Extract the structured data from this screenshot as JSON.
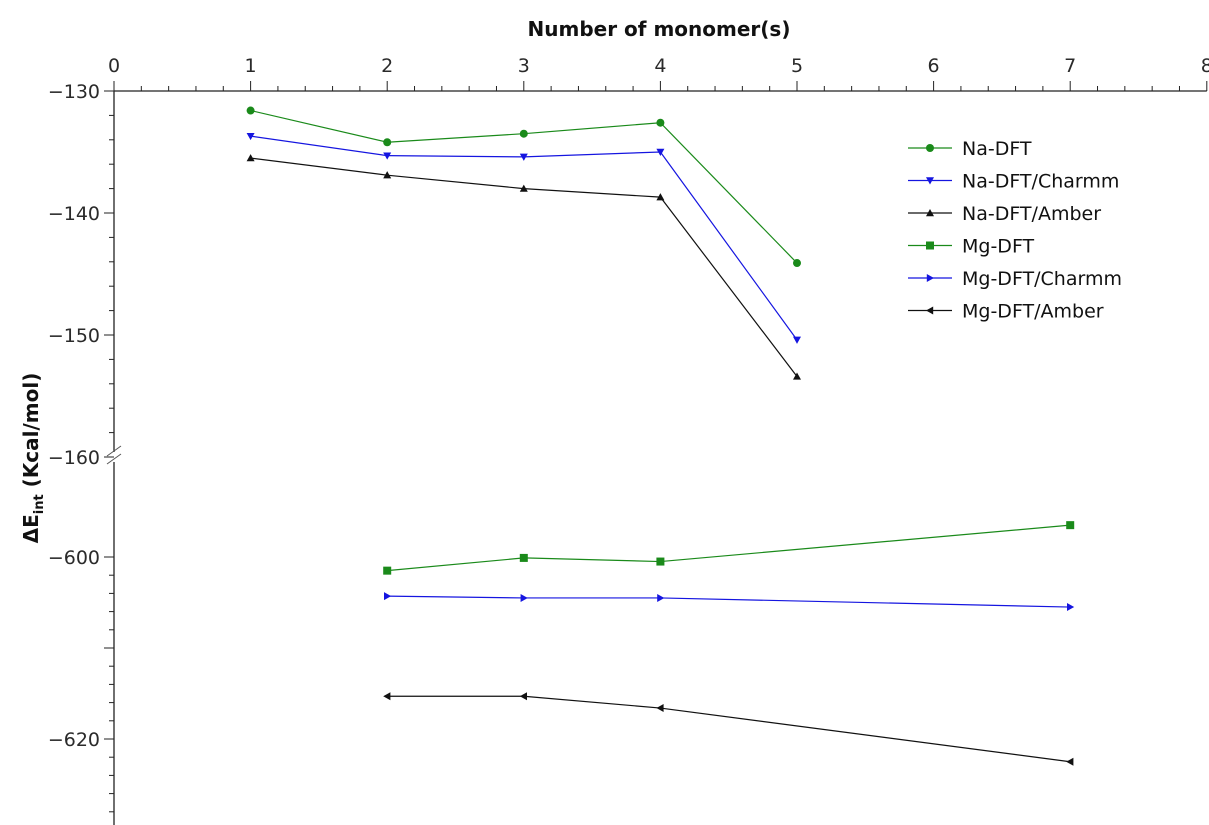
{
  "chart_data": {
    "type": "line",
    "title": "",
    "xlabel": "Number of monomer(s)",
    "ylabel_main": "ΔE",
    "ylabel_sub": "int",
    "ylabel_rest": " (Kcal/mol)",
    "xlim": [
      0,
      8
    ],
    "x_ticks": [
      "0",
      "1",
      "2",
      "3",
      "4",
      "5",
      "6",
      "7",
      "8"
    ],
    "y_axis_broken": true,
    "y_upper_ticks": [
      "−130",
      "−140",
      "−150",
      "−160"
    ],
    "y_lower_ticks": [
      "−600",
      "−620"
    ],
    "legend_position": "top-right",
    "series": [
      {
        "name": "Na-DFT",
        "color": "#1a8a1a",
        "marker": "circle",
        "x": [
          1,
          2,
          3,
          4,
          5
        ],
        "y": [
          -131.6,
          -134.2,
          -133.5,
          -132.6,
          -144.1
        ]
      },
      {
        "name": "Na-DFT/Charmm",
        "color": "#1515e0",
        "marker": "triangle-down",
        "x": [
          1,
          2,
          3,
          4,
          5
        ],
        "y": [
          -133.7,
          -135.3,
          -135.4,
          -135.0,
          -150.4
        ]
      },
      {
        "name": "Na-DFT/Amber",
        "color": "#111111",
        "marker": "triangle-up",
        "x": [
          1,
          2,
          3,
          4,
          5
        ],
        "y": [
          -135.5,
          -136.9,
          -138.0,
          -138.7,
          -153.4
        ]
      },
      {
        "name": "Mg-DFT",
        "color": "#1a8a1a",
        "marker": "square",
        "x": [
          2,
          3,
          4,
          7
        ],
        "y": [
          -601.5,
          -600.1,
          -600.5,
          -596.5
        ]
      },
      {
        "name": "Mg-DFT/Charmm",
        "color": "#1515e0",
        "marker": "triangle-right",
        "x": [
          2,
          3,
          4,
          7
        ],
        "y": [
          -604.3,
          -604.5,
          -604.5,
          -605.5
        ]
      },
      {
        "name": "Mg-DFT/Amber",
        "color": "#111111",
        "marker": "triangle-left",
        "x": [
          2,
          3,
          4,
          7
        ],
        "y": [
          -615.3,
          -615.3,
          -616.6,
          -622.5
        ]
      }
    ]
  }
}
